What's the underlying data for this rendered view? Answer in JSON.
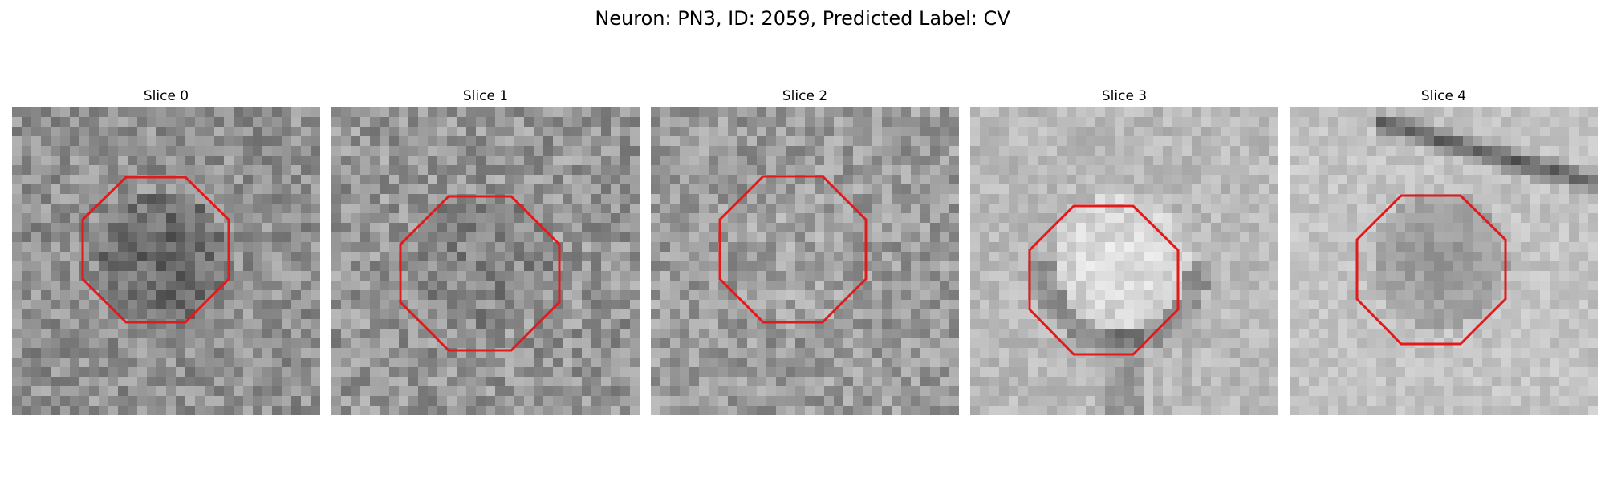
{
  "figure": {
    "title": "Neuron: PN3, ID: 2059, Predicted Label: CV"
  },
  "panels": [
    {
      "title": "Slice 0",
      "image": "grayscale microscopy patch, noisy texture, darker cell region in center",
      "tone": {
        "base": 145,
        "center": -45,
        "band": 0,
        "noise": 70
      },
      "seed": 11,
      "overlay": "red-octagon"
    },
    {
      "title": "Slice 1",
      "image": "grayscale microscopy patch, noisy texture with dark pixels",
      "tone": {
        "base": 150,
        "center": -20,
        "band": 0,
        "noise": 75
      },
      "seed": 23,
      "overlay": "red-octagon"
    },
    {
      "title": "Slice 2",
      "image": "grayscale microscopy patch, noisy mid-gray texture",
      "tone": {
        "base": 155,
        "center": 10,
        "band": 0,
        "noise": 70
      },
      "seed": 37,
      "overlay": "red-octagon"
    },
    {
      "title": "Slice 3",
      "image": "grayscale microscopy patch, bright round soma with dark edge below",
      "tone": {
        "base": 185,
        "center": 40,
        "band": -50,
        "noise": 40
      },
      "seed": 41,
      "overlay": "red-octagon"
    },
    {
      "title": "Slice 4",
      "image": "grayscale microscopy patch, darker soma with dark diagonal band at top right",
      "tone": {
        "base": 195,
        "center": -45,
        "band": -110,
        "noise": 35
      },
      "seed": 53,
      "overlay": "red-octagon"
    }
  ],
  "colors": {
    "overlay": "#e31a1c",
    "background": "#ffffff"
  }
}
